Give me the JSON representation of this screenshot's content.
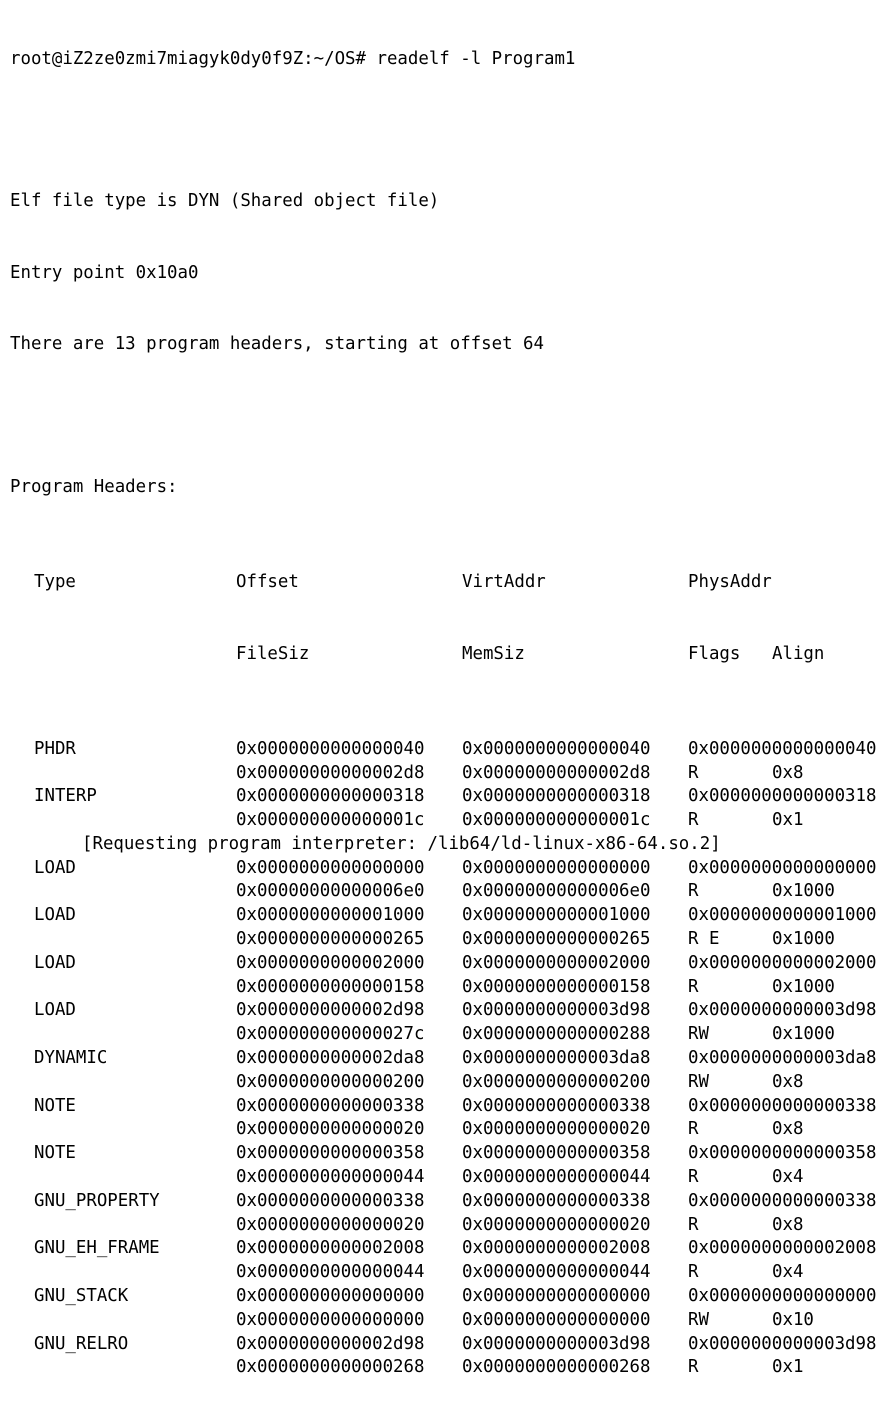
{
  "prompt": "root@iZ2ze0zmi7miagyk0dy0f9Z:~/OS#",
  "command": "readelf -l Program1",
  "summary": {
    "file_type": "Elf file type is DYN (Shared object file)",
    "entry_point": "Entry point 0x10a0",
    "header_count": "There are 13 program headers, starting at offset 64"
  },
  "section_title": "Program Headers:",
  "columns": {
    "type": "Type",
    "offset": "Offset",
    "virtaddr": "VirtAddr",
    "physaddr": "PhysAddr",
    "filesiz": "FileSiz",
    "memsiz": "MemSiz",
    "flags": "Flags",
    "align": "Align"
  },
  "headers": [
    {
      "type": "PHDR",
      "offset": "0x0000000000000040",
      "virtaddr": "0x0000000000000040",
      "physaddr": "0x0000000000000040",
      "filesiz": "0x00000000000002d8",
      "memsiz": "0x00000000000002d8",
      "flags": "R",
      "align": "0x8"
    },
    {
      "type": "INTERP",
      "offset": "0x0000000000000318",
      "virtaddr": "0x0000000000000318",
      "physaddr": "0x0000000000000318",
      "filesiz": "0x000000000000001c",
      "memsiz": "0x000000000000001c",
      "flags": "R",
      "align": "0x1"
    },
    {
      "type": "LOAD",
      "offset": "0x0000000000000000",
      "virtaddr": "0x0000000000000000",
      "physaddr": "0x0000000000000000",
      "filesiz": "0x00000000000006e0",
      "memsiz": "0x00000000000006e0",
      "flags": "R",
      "align": "0x1000"
    },
    {
      "type": "LOAD",
      "offset": "0x0000000000001000",
      "virtaddr": "0x0000000000001000",
      "physaddr": "0x0000000000001000",
      "filesiz": "0x0000000000000265",
      "memsiz": "0x0000000000000265",
      "flags": "R E",
      "align": "0x1000"
    },
    {
      "type": "LOAD",
      "offset": "0x0000000000002000",
      "virtaddr": "0x0000000000002000",
      "physaddr": "0x0000000000002000",
      "filesiz": "0x0000000000000158",
      "memsiz": "0x0000000000000158",
      "flags": "R",
      "align": "0x1000"
    },
    {
      "type": "LOAD",
      "offset": "0x0000000000002d98",
      "virtaddr": "0x0000000000003d98",
      "physaddr": "0x0000000000003d98",
      "filesiz": "0x000000000000027c",
      "memsiz": "0x0000000000000288",
      "flags": "RW",
      "align": "0x1000"
    },
    {
      "type": "DYNAMIC",
      "offset": "0x0000000000002da8",
      "virtaddr": "0x0000000000003da8",
      "physaddr": "0x0000000000003da8",
      "filesiz": "0x0000000000000200",
      "memsiz": "0x0000000000000200",
      "flags": "RW",
      "align": "0x8"
    },
    {
      "type": "NOTE",
      "offset": "0x0000000000000338",
      "virtaddr": "0x0000000000000338",
      "physaddr": "0x0000000000000338",
      "filesiz": "0x0000000000000020",
      "memsiz": "0x0000000000000020",
      "flags": "R",
      "align": "0x8"
    },
    {
      "type": "NOTE",
      "offset": "0x0000000000000358",
      "virtaddr": "0x0000000000000358",
      "physaddr": "0x0000000000000358",
      "filesiz": "0x0000000000000044",
      "memsiz": "0x0000000000000044",
      "flags": "R",
      "align": "0x4"
    },
    {
      "type": "GNU_PROPERTY",
      "offset": "0x0000000000000338",
      "virtaddr": "0x0000000000000338",
      "physaddr": "0x0000000000000338",
      "filesiz": "0x0000000000000020",
      "memsiz": "0x0000000000000020",
      "flags": "R",
      "align": "0x8"
    },
    {
      "type": "GNU_EH_FRAME",
      "offset": "0x0000000000002008",
      "virtaddr": "0x0000000000002008",
      "physaddr": "0x0000000000002008",
      "filesiz": "0x0000000000000044",
      "memsiz": "0x0000000000000044",
      "flags": "R",
      "align": "0x4"
    },
    {
      "type": "GNU_STACK",
      "offset": "0x0000000000000000",
      "virtaddr": "0x0000000000000000",
      "physaddr": "0x0000000000000000",
      "filesiz": "0x0000000000000000",
      "memsiz": "0x0000000000000000",
      "flags": "RW",
      "align": "0x10"
    },
    {
      "type": "GNU_RELRO",
      "offset": "0x0000000000002d98",
      "virtaddr": "0x0000000000003d98",
      "physaddr": "0x0000000000003d98",
      "filesiz": "0x0000000000000268",
      "memsiz": "0x0000000000000268",
      "flags": "R",
      "align": "0x1"
    }
  ],
  "interp_note": "[Requesting program interpreter: /lib64/ld-linux-x86-64.so.2]"
}
